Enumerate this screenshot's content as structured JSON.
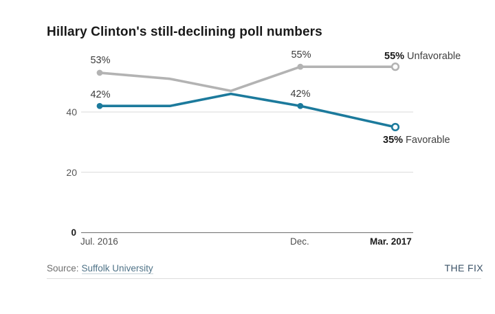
{
  "title": "Hillary Clinton's still-declining poll numbers",
  "chart_data": {
    "type": "line",
    "x_unit": "months since Jul. 2016",
    "x_months": [
      0,
      1.9,
      3.55,
      5.43,
      8
    ],
    "xtick_labels": [
      "Jul. 2016",
      "Dec.",
      "Mar. 2017"
    ],
    "yticks": [
      0,
      20,
      40
    ],
    "ylim": [
      0,
      60
    ],
    "grid": "horizontal",
    "legend_position": "end-of-line labels",
    "series": [
      {
        "name": "Unfavorable",
        "color": "#b3b3b3",
        "values": [
          53,
          51,
          47,
          55,
          55
        ],
        "markers": [
          "dot",
          "none",
          "none",
          "dot",
          "open"
        ]
      },
      {
        "name": "Favorable",
        "color": "#1c7a9c",
        "values": [
          42,
          42,
          46,
          42,
          35
        ],
        "markers": [
          "dot",
          "none",
          "none",
          "dot",
          "open"
        ]
      }
    ],
    "point_labels": [
      {
        "point": "Jul. 2016",
        "series": "Unfavorable",
        "text": "53%"
      },
      {
        "point": "Jul. 2016",
        "series": "Favorable",
        "text": "42%"
      },
      {
        "point": "Dec.",
        "series": "Unfavorable",
        "text": "55%"
      },
      {
        "point": "Dec.",
        "series": "Favorable",
        "text": "42%"
      }
    ],
    "end_labels": [
      {
        "series": "Unfavorable",
        "value": "55%",
        "label": "Unfavorable"
      },
      {
        "series": "Favorable",
        "value": "35%",
        "label": "Favorable"
      }
    ],
    "colors": {
      "grid": "#d9d9d9",
      "axis": "#666666"
    }
  },
  "footer": {
    "source_prefix": "Source:",
    "source_link": "Suffolk University",
    "brand": "THE FIX"
  }
}
